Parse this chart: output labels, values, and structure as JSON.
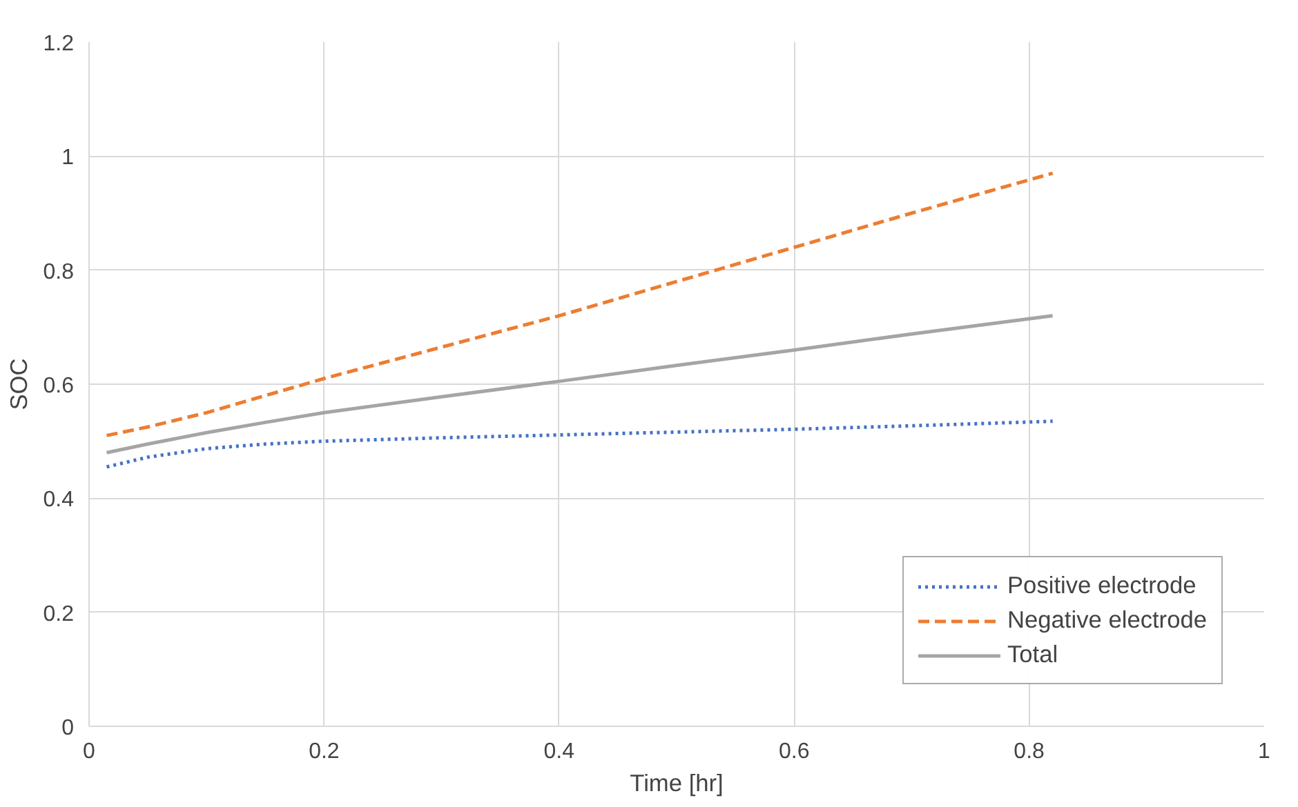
{
  "chart_data": {
    "type": "line",
    "xlabel": "Time [hr]",
    "ylabel": "SOC",
    "xlim": [
      0,
      1
    ],
    "xticks": [
      0,
      0.2,
      0.4,
      0.6,
      0.8,
      1
    ],
    "ylim": [
      0,
      1.2
    ],
    "yticks": [
      0,
      0.2,
      0.4,
      0.6,
      0.8,
      1,
      1.2
    ],
    "x": [
      0.015,
      0.05,
      0.1,
      0.15,
      0.2,
      0.3,
      0.4,
      0.5,
      0.6,
      0.7,
      0.82
    ],
    "series": [
      {
        "name": "Positive electrode",
        "color": "#4472c4",
        "line_style": "dotted",
        "values": [
          0.455,
          0.472,
          0.487,
          0.495,
          0.5,
          0.506,
          0.511,
          0.516,
          0.521,
          0.527,
          0.535
        ]
      },
      {
        "name": "Negative electrode",
        "color": "#ed7d31",
        "line_style": "dashed",
        "values": [
          0.51,
          0.525,
          0.55,
          0.58,
          0.61,
          0.665,
          0.72,
          0.78,
          0.84,
          0.9,
          0.97
        ]
      },
      {
        "name": "Total",
        "color": "#a5a5a5",
        "line_style": "solid",
        "values": [
          0.48,
          0.495,
          0.515,
          0.533,
          0.55,
          0.578,
          0.605,
          0.633,
          0.66,
          0.688,
          0.72
        ]
      }
    ],
    "grid": true,
    "legend": "bottom right"
  }
}
